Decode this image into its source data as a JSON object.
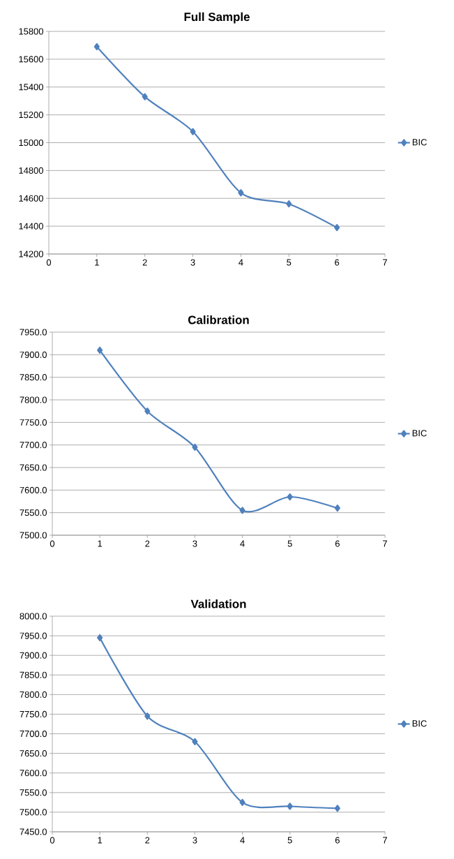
{
  "chart_data": [
    {
      "type": "line",
      "title": "Full Sample",
      "x": [
        1,
        2,
        3,
        4,
        5,
        6
      ],
      "series": [
        {
          "name": "BIC",
          "color": "#4f81bd",
          "values": [
            15690,
            15330,
            15080,
            14640,
            14560,
            14390
          ]
        }
      ],
      "xlim": [
        0,
        7
      ],
      "xticks": [
        0,
        1,
        2,
        3,
        4,
        5,
        6,
        7
      ],
      "ylim": [
        14200,
        15800
      ],
      "yticks": [
        14200,
        14400,
        14600,
        14800,
        15000,
        15200,
        15400,
        15600,
        15800
      ],
      "grid": "y",
      "legend": "right",
      "marker": "diamond",
      "line_style": "solid"
    },
    {
      "type": "line",
      "title": "Calibration",
      "x": [
        1,
        2,
        3,
        4,
        5,
        6
      ],
      "series": [
        {
          "name": "BIC",
          "color": "#4f81bd",
          "values": [
            7910,
            7775,
            7695,
            7555,
            7585,
            7560
          ]
        }
      ],
      "xlim": [
        0,
        7
      ],
      "xticks": [
        0,
        1,
        2,
        3,
        4,
        5,
        6,
        7
      ],
      "ylim": [
        7500,
        7950
      ],
      "yticks": [
        {
          "value": 7500,
          "label": "7500.0"
        },
        {
          "value": 7550,
          "label": "7550.0"
        },
        {
          "value": 7600,
          "label": "7600.0"
        },
        {
          "value": 7650,
          "label": "7650.0"
        },
        {
          "value": 7700,
          "label": "7700.0"
        },
        {
          "value": 7750,
          "label": "7750.0"
        },
        {
          "value": 7800,
          "label": "7800.0"
        },
        {
          "value": 7850,
          "label": "7850.0"
        },
        {
          "value": 7900,
          "label": "7900.0"
        },
        {
          "value": 7950,
          "label": "7950.0"
        }
      ],
      "grid": "y",
      "legend": "right",
      "marker": "diamond",
      "line_style": "solid"
    },
    {
      "type": "line",
      "title": "Validation",
      "x": [
        1,
        2,
        3,
        4,
        5,
        6
      ],
      "series": [
        {
          "name": "BIC",
          "color": "#4f81bd",
          "values": [
            7945,
            7745,
            7680,
            7525,
            7515,
            7510
          ]
        }
      ],
      "xlim": [
        0,
        7
      ],
      "xticks": [
        0,
        1,
        2,
        3,
        4,
        5,
        6,
        7
      ],
      "ylim": [
        7450,
        8000
      ],
      "yticks": [
        {
          "value": 7450,
          "label": "7450.0"
        },
        {
          "value": 7500,
          "label": "7500.0"
        },
        {
          "value": 7550,
          "label": "7550.0"
        },
        {
          "value": 7600,
          "label": "7600.0"
        },
        {
          "value": 7650,
          "label": "7650.0"
        },
        {
          "value": 7700,
          "label": "7700.0"
        },
        {
          "value": 7750,
          "label": "7750.0"
        },
        {
          "value": 7800,
          "label": "7800.0"
        },
        {
          "value": 7850,
          "label": "7850.0"
        },
        {
          "value": 7900,
          "label": "7900.0"
        },
        {
          "value": 7950,
          "label": "7950.0"
        },
        {
          "value": 8000,
          "label": "8000.0"
        }
      ],
      "grid": "y",
      "legend": "right",
      "marker": "diamond",
      "line_style": "solid"
    }
  ]
}
